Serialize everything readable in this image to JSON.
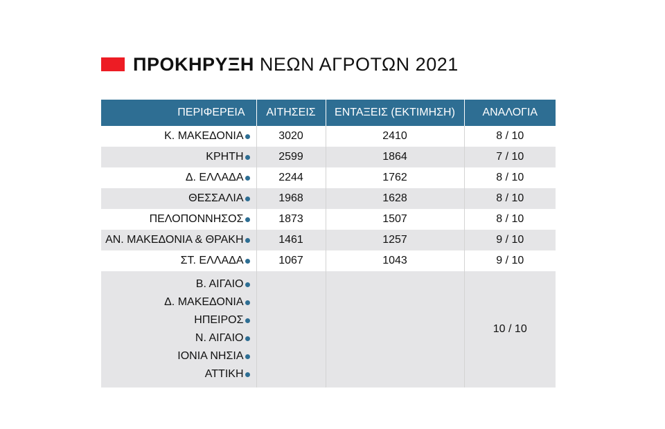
{
  "title": {
    "bold": "ΠΡΟΚΗΡΥΞΗ",
    "rest": "ΝΕΩΝ ΑΓΡΟΤΩΝ 2021",
    "accent_color": "#ed1c24"
  },
  "colors": {
    "header_bg": "#2e6e93",
    "row_shade": "#e5e5e7",
    "dot": "#2e6e93"
  },
  "chart_data": {
    "type": "table",
    "columns": [
      "ΠΕΡΙΦΕΡΕΙΑ",
      "ΑΙΤΗΣΕΙΣ",
      "ΕΝΤΑΞΕΙΣ (ΕΚΤΙΜΗΣΗ)",
      "ΑΝΑΛΟΓΙΑ"
    ],
    "rows": [
      {
        "region": "Κ. ΜΑΚΕΔΟΝΙΑ",
        "applications": "3020",
        "inclusions": "2410",
        "ratio": "8 / 10"
      },
      {
        "region": "ΚΡΗΤΗ",
        "applications": "2599",
        "inclusions": "1864",
        "ratio": "7 / 10"
      },
      {
        "region": "Δ. ΕΛΛΑΔΑ",
        "applications": "2244",
        "inclusions": "1762",
        "ratio": "8 / 10"
      },
      {
        "region": "ΘΕΣΣΑΛΙΑ",
        "applications": "1968",
        "inclusions": "1628",
        "ratio": "8 / 10"
      },
      {
        "region": "ΠΕΛΟΠΟΝΝΗΣΟΣ",
        "applications": "1873",
        "inclusions": "1507",
        "ratio": "8 / 10"
      },
      {
        "region": "ΑΝ. ΜΑΚΕΔΟΝΙΑ & ΘΡΑΚΗ",
        "applications": "1461",
        "inclusions": "1257",
        "ratio": "9 / 10"
      },
      {
        "region": "ΣΤ. ΕΛΛΑΔΑ",
        "applications": "1067",
        "inclusions": "1043",
        "ratio": "9 / 10"
      }
    ],
    "group_row": {
      "regions": [
        "Β. ΑΙΓΑΙΟ",
        "Δ. ΜΑΚΕΔΟΝΙΑ",
        "ΗΠΕΙΡΟΣ",
        "Ν. ΑΙΓΑΙΟ",
        "ΙΟΝΙΑ ΝΗΣΙΑ",
        "ΑΤΤΙΚΗ"
      ],
      "applications": "",
      "inclusions": "",
      "ratio": "10 / 10"
    }
  }
}
